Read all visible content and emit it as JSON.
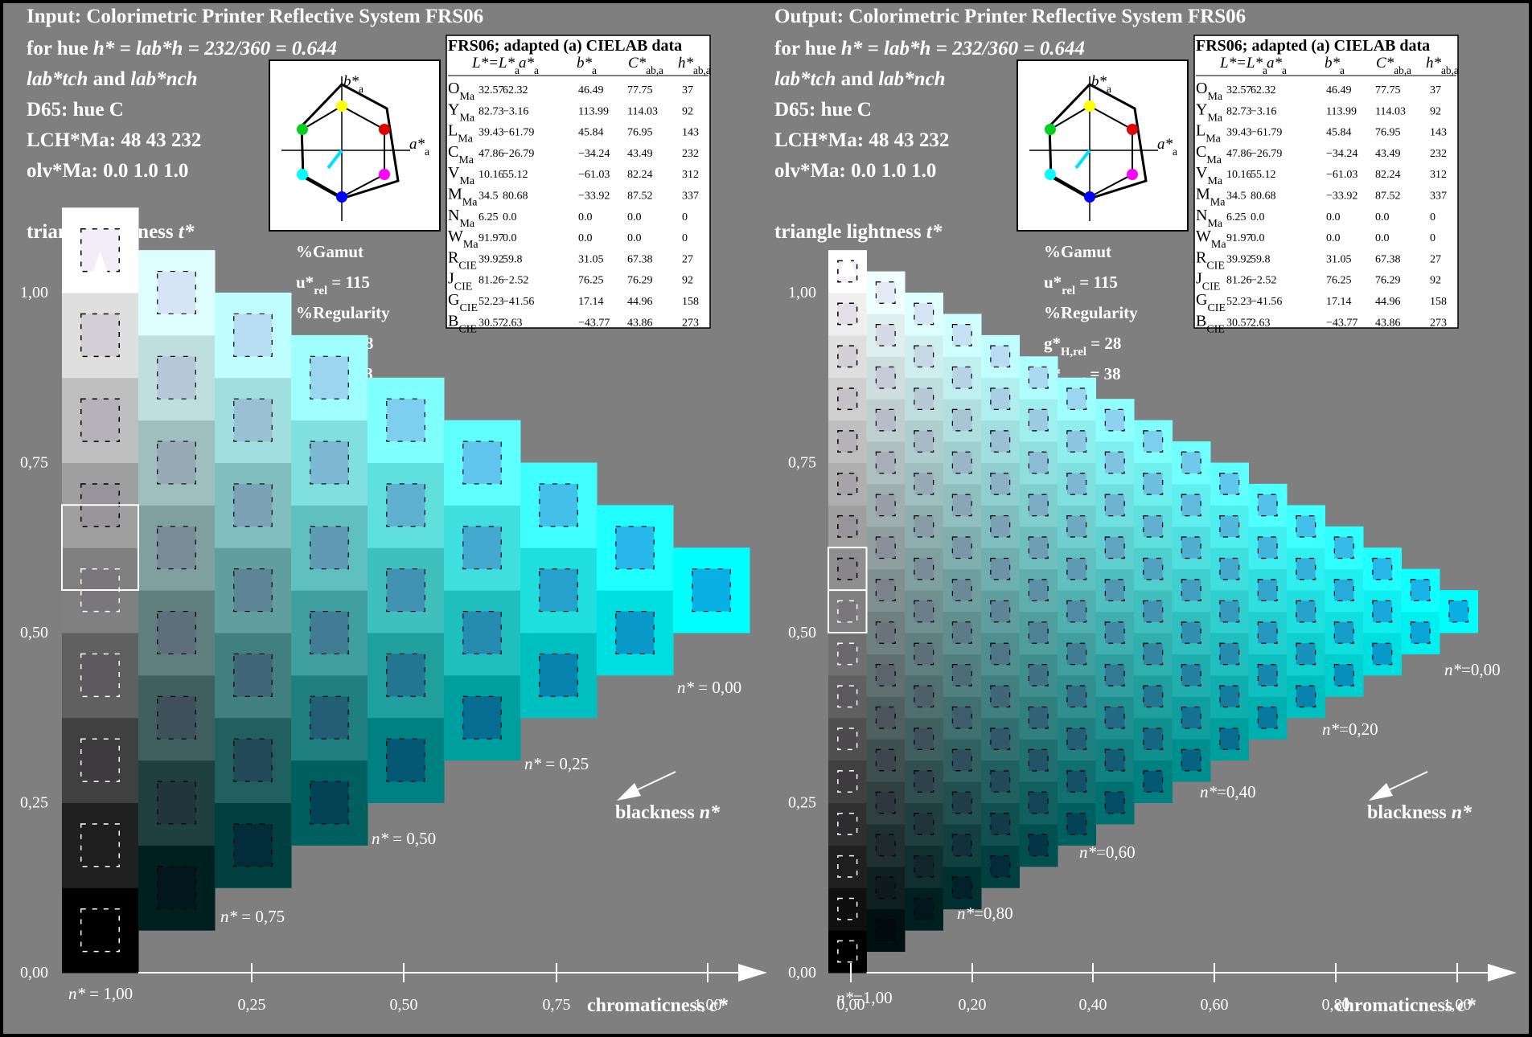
{
  "header": {
    "lines": [
      "Input:  Colorimetric Printer Reflective System FRS06",
      "for hue h* = lab*h = 232/360 = 0.644",
      "lab*tch and lab*nch",
      "D65: hue C",
      "LCH*Ma: 48  43  232",
      "olv*Ma: 0.0  1.0  1.0"
    ],
    "output_title": "Output: Colorimetric Printer Reflective System FRS06"
  },
  "labels": {
    "triangle_lightness": "triangle lightness t*",
    "gamut": "%Gamut",
    "u_rel": "u*rel = 115",
    "regularity": "%Regularity",
    "g_h_rel": "g*H,rel = 28",
    "g_c_rel": "g*C,rel = 38",
    "blackness": "blackness n*",
    "chromaticness": "chromaticness c*",
    "diagram_b": "b*a",
    "diagram_a": "a*a"
  },
  "table": {
    "title": "FRS06; adapted (a) CIELAB data",
    "headers": [
      "L*=L*a",
      "a*a",
      "b*a",
      "C*ab,a",
      "h*ab,a"
    ],
    "rows": [
      {
        "name": "OMa",
        "L": "32.57",
        "a": "62.32",
        "b": "46.49",
        "C": "77.75",
        "h": "37"
      },
      {
        "name": "YMa",
        "L": "82.73",
        "a": "−3.16",
        "b": "113.99",
        "C": "114.03",
        "h": "92"
      },
      {
        "name": "LMa",
        "L": "39.43",
        "a": "−61.79",
        "b": "45.84",
        "C": "76.95",
        "h": "143"
      },
      {
        "name": "CMa",
        "L": "47.86",
        "a": "−26.79",
        "b": "−34.24",
        "C": "43.49",
        "h": "232"
      },
      {
        "name": "VMa",
        "L": "10.16",
        "a": "55.12",
        "b": "−61.03",
        "C": "82.24",
        "h": "312"
      },
      {
        "name": "MMa",
        "L": "34.5",
        "a": "80.68",
        "b": "−33.92",
        "C": "87.52",
        "h": "337"
      },
      {
        "name": "NMa",
        "L": "6.25",
        "a": "0.0",
        "b": "0.0",
        "C": "0.0",
        "h": "0"
      },
      {
        "name": "WMa",
        "L": "91.97",
        "a": "0.0",
        "b": "0.0",
        "C": "0.0",
        "h": "0"
      },
      {
        "name": "RCIE",
        "L": "39.92",
        "a": "59.8",
        "b": "31.05",
        "C": "67.38",
        "h": "27"
      },
      {
        "name": "JCIE",
        "L": "81.26",
        "a": "−2.52",
        "b": "76.25",
        "C": "76.29",
        "h": "92"
      },
      {
        "name": "GCIE",
        "L": "52.23",
        "a": "−41.56",
        "b": "17.14",
        "C": "44.96",
        "h": "158"
      },
      {
        "name": "BCIE",
        "L": "30.57",
        "a": "2.63",
        "b": "−43.77",
        "C": "43.86",
        "h": "273"
      }
    ]
  },
  "left_chart": {
    "steps": 8,
    "y_ticks": [
      "0,00",
      "0,25",
      "0,50",
      "0,75",
      "1,00"
    ],
    "x_ticks": [
      "0,25",
      "0,50",
      "0,75",
      "1,00"
    ],
    "n_labels": [
      "n* = 0,00",
      "n* = 0,25",
      "n* = 0,50",
      "n* = 0,75",
      "n* = 1,00"
    ]
  },
  "right_chart": {
    "steps": 16,
    "y_ticks": [
      "0,00",
      "0,25",
      "0,50",
      "0,75",
      "1,00"
    ],
    "x_ticks": [
      "0,00",
      "0,20",
      "0,40",
      "0,60",
      "0,80",
      "1,00"
    ],
    "n_labels": [
      "n*=0,00",
      "n*=0,20",
      "n*=0,40",
      "n*=0,60",
      "n*=0,80",
      "n*=1,00"
    ]
  },
  "colors": {
    "background": "#7f7f7f",
    "target_color": "#00ffff",
    "frame": "#000000",
    "text": "#ffffff"
  },
  "hue_diagram": {
    "points": [
      {
        "name": "yellow",
        "color": "#ffff00"
      },
      {
        "name": "green",
        "color": "#00d020"
      },
      {
        "name": "red",
        "color": "#e00000"
      },
      {
        "name": "cyan",
        "color": "#00ffff"
      },
      {
        "name": "magenta",
        "color": "#ff00ff"
      },
      {
        "name": "blue",
        "color": "#0000ff"
      }
    ]
  }
}
